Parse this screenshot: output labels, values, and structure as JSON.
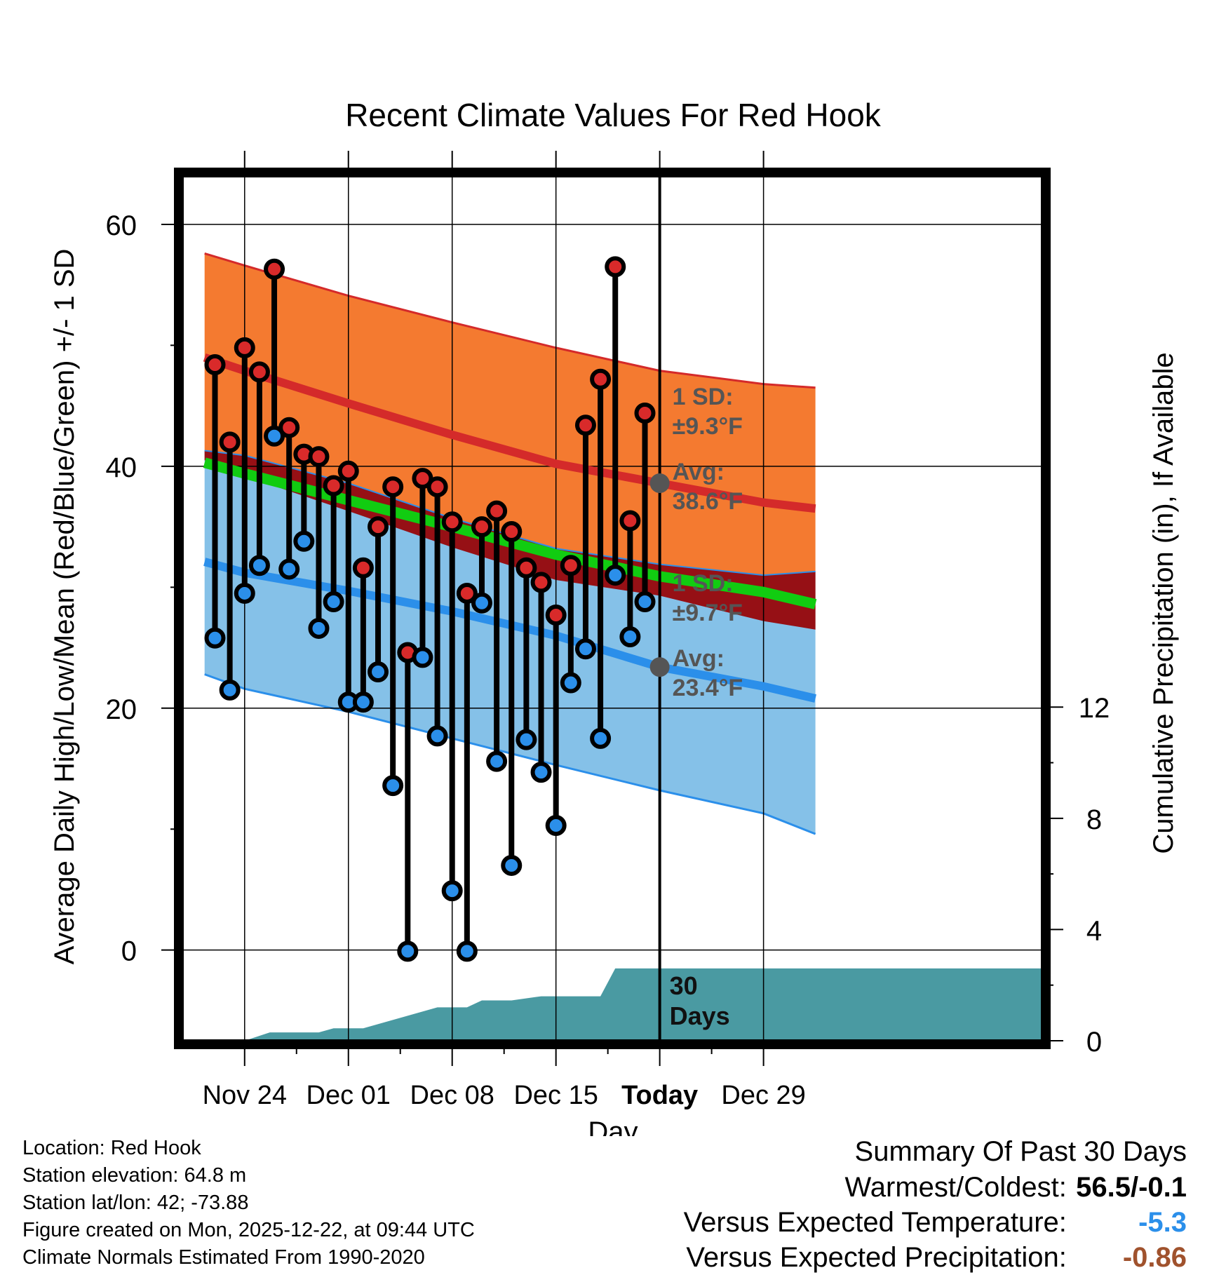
{
  "chart_data": {
    "type": "line",
    "title": "Recent Climate Values For Red Hook",
    "xlabel": "Day",
    "ylabel": "Average Daily High/Low/Mean (Red/Blue/Green) +/- 1 SD",
    "y2label": "Cumulative Precipitation (in), If Available",
    "ylim": [
      -7.5,
      64
    ],
    "y2lim": [
      0,
      31.1
    ],
    "xlim": [
      -4.2,
      53.8
    ],
    "x_unit": "day index (0 = Nov 24)",
    "x_ticks": [
      {
        "x": 0,
        "label": "Nov 24"
      },
      {
        "x": 7,
        "label": "Dec 01"
      },
      {
        "x": 14,
        "label": "Dec 08"
      },
      {
        "x": 21,
        "label": "Dec 15"
      },
      {
        "x": 28,
        "label": "Today"
      },
      {
        "x": 35,
        "label": "Dec 29"
      }
    ],
    "y_ticks": [
      0,
      20,
      40,
      60
    ],
    "y2_ticks": [
      0,
      4,
      8,
      12
    ],
    "today_x": 28,
    "normals_x": [
      -2.7,
      0,
      7,
      14,
      21,
      28,
      35,
      38.5
    ],
    "normal_high": [
      49,
      47.9,
      45.2,
      42.6,
      40.2,
      38.6,
      37,
      36.5
    ],
    "normal_high_upper": [
      57.6,
      56.6,
      54.1,
      51.9,
      49.8,
      47.9,
      46.8,
      46.5
    ],
    "normal_high_lower": [
      40.5,
      39.2,
      36.3,
      33.3,
      30.6,
      29.3,
      27.2,
      26.5
    ],
    "normal_low": [
      32.1,
      31.2,
      29.7,
      28,
      26,
      23.4,
      21.8,
      20.8
    ],
    "normal_low_upper": [
      41.3,
      40.9,
      38.6,
      35.7,
      33.2,
      31.9,
      31,
      31.3
    ],
    "normal_low_lower": [
      22.8,
      21.6,
      19.7,
      17.5,
      15.3,
      13.2,
      11.3,
      9.6
    ],
    "normal_mean": [
      40.3,
      39.4,
      37.2,
      35,
      32.7,
      30.9,
      29.6,
      28.6
    ],
    "days_x": [
      -2,
      -1,
      0,
      1,
      2,
      3,
      4,
      5,
      6,
      7,
      8,
      9,
      10,
      11,
      12,
      13,
      14,
      15,
      16,
      17,
      18,
      19,
      20,
      21,
      22,
      23,
      24,
      25,
      26,
      27
    ],
    "daily_high": [
      48.4,
      42,
      49.8,
      47.8,
      56.3,
      43.2,
      41,
      40.8,
      38.4,
      39.6,
      31.6,
      35,
      38.3,
      24.6,
      39,
      38.3,
      35.4,
      29.5,
      35,
      36.3,
      34.6,
      31.6,
      30.4,
      27.7,
      31.8,
      43.4,
      47.2,
      56.5,
      35.5,
      44.4
    ],
    "daily_low": [
      25.8,
      21.5,
      29.5,
      31.8,
      42.5,
      31.5,
      33.8,
      26.6,
      28.8,
      20.5,
      20.5,
      23,
      13.6,
      -0.1,
      24.2,
      17.7,
      4.9,
      -0.1,
      28.7,
      15.6,
      7,
      17.4,
      14.7,
      10.3,
      22.1,
      24.9,
      17.5,
      31,
      25.9,
      28.8
    ],
    "precip_x": [
      -4.2,
      0,
      1.7,
      5,
      6,
      8,
      13,
      15,
      16,
      18,
      20,
      22,
      23,
      24,
      25,
      26,
      53.8
    ],
    "precip_cum": [
      0,
      0,
      0.3,
      0.3,
      0.45,
      0.45,
      1.2,
      1.2,
      1.45,
      1.45,
      1.6,
      1.6,
      1.6,
      1.6,
      2.6,
      2.6,
      2.6
    ],
    "annotations": {
      "high_sd": "1 SD:",
      "high_sd_val": "±9.3°F",
      "high_avg": "Avg:",
      "high_avg_val": "38.6°F",
      "low_sd": "1 SD:",
      "low_sd_val": "±9.7°F",
      "low_avg": "Avg:",
      "low_avg_val": "23.4°F",
      "days_num": "30",
      "days_word": "Days"
    },
    "colors": {
      "high_band": "#f47a30",
      "high_line": "#d42a2a",
      "low_band": "#85c1e8",
      "low_line": "#2b8fea",
      "mean": "#11cc11",
      "overlap": "#961015",
      "precip": "#4a9aa2",
      "high_dot": "#d92a2a",
      "low_dot": "#2b8fea",
      "label": "#555555"
    }
  },
  "info": {
    "location": "Location: Red Hook",
    "elevation": "Station elevation: 64.8 m",
    "latlon": "Station lat/lon: 42; -73.88",
    "created": "Figure created on Mon, 2025-12-22, at 09:44 UTC",
    "normals": "Climate Normals Estimated From 1990-2020"
  },
  "summary": {
    "heading": "Summary Of Past 30 Days",
    "warmest_label": "Warmest/Coldest:",
    "warmest_value": "56.5/-0.1",
    "temp_label": "Versus Expected Temperature:",
    "temp_value": "-5.3",
    "temp_color": "#2b8fea",
    "precip_label": "Versus Expected Precipitation:",
    "precip_value": "-0.86",
    "precip_color": "#a0522d"
  }
}
